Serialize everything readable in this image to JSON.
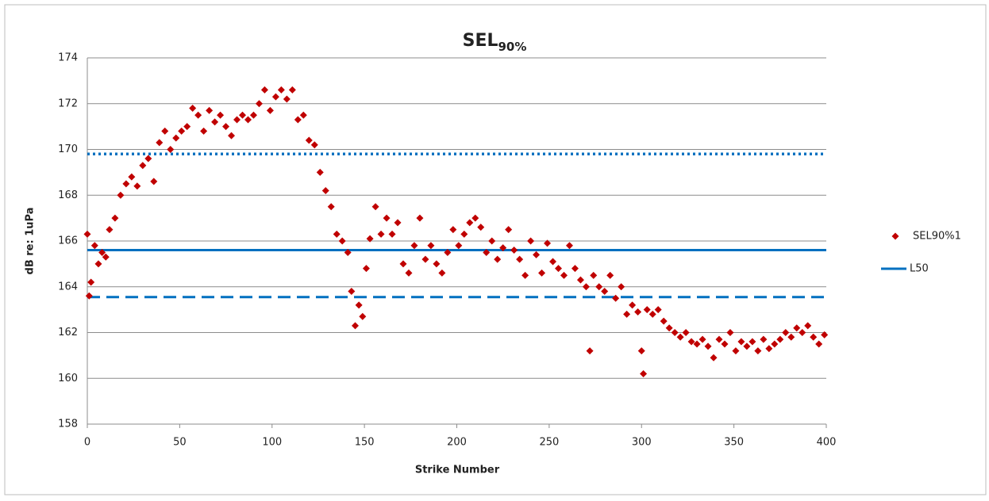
{
  "chart_data": {
    "type": "scatter",
    "title": "SEL",
    "title_subscript": "90%",
    "xlabel": "Strike Number",
    "ylabel": "dB re: 1uPa",
    "xlim": [
      0,
      400
    ],
    "xticks": [
      0,
      50,
      100,
      150,
      200,
      250,
      300,
      350,
      400
    ],
    "ylim": [
      158,
      174
    ],
    "yticks": [
      158,
      160,
      162,
      164,
      166,
      168,
      170,
      172,
      174
    ],
    "grid": true,
    "legend": "right",
    "series": [
      {
        "name": "SEL90%1",
        "color": "#c00000",
        "x": [
          0,
          1,
          2,
          4,
          6,
          8,
          10,
          12,
          15,
          18,
          21,
          24,
          27,
          30,
          33,
          36,
          39,
          42,
          45,
          48,
          51,
          54,
          57,
          60,
          63,
          66,
          69,
          72,
          75,
          78,
          81,
          84,
          87,
          90,
          93,
          96,
          99,
          102,
          105,
          108,
          111,
          114,
          117,
          120,
          123,
          126,
          129,
          132,
          135,
          138,
          141,
          143,
          145,
          147,
          149,
          151,
          153,
          156,
          159,
          162,
          165,
          168,
          171,
          174,
          177,
          180,
          183,
          186,
          189,
          192,
          195,
          198,
          201,
          204,
          207,
          210,
          213,
          216,
          219,
          222,
          225,
          228,
          231,
          234,
          237,
          240,
          243,
          246,
          249,
          252,
          255,
          258,
          261,
          264,
          267,
          270,
          272,
          274,
          277,
          280,
          283,
          286,
          289,
          292,
          295,
          298,
          300,
          301,
          303,
          306,
          309,
          312,
          315,
          318,
          321,
          324,
          327,
          330,
          333,
          336,
          339,
          342,
          345,
          348,
          351,
          354,
          357,
          360,
          363,
          366,
          369,
          372,
          375,
          378,
          381,
          384,
          387,
          390,
          393,
          396,
          399
        ],
        "values": [
          166.3,
          163.6,
          164.2,
          165.8,
          165,
          165.5,
          165.3,
          166.5,
          167,
          168,
          168.5,
          168.8,
          168.4,
          169.3,
          169.6,
          168.6,
          170.3,
          170.8,
          170,
          170.5,
          170.8,
          171,
          171.8,
          171.5,
          170.8,
          171.7,
          171.2,
          171.5,
          171,
          170.6,
          171.3,
          171.5,
          171.3,
          171.5,
          172,
          172.6,
          171.7,
          172.3,
          172.6,
          172.2,
          172.6,
          171.3,
          171.5,
          170.4,
          170.2,
          169,
          168.2,
          167.5,
          166.3,
          166,
          165.5,
          163.8,
          162.3,
          163.2,
          162.7,
          164.8,
          166.1,
          167.5,
          166.3,
          167,
          166.3,
          166.8,
          165,
          164.6,
          165.8,
          167,
          165.2,
          165.8,
          165,
          164.6,
          165.5,
          166.5,
          165.8,
          166.3,
          166.8,
          167,
          166.6,
          165.5,
          166,
          165.2,
          165.7,
          166.5,
          165.6,
          165.2,
          164.5,
          166,
          165.4,
          164.6,
          165.9,
          165.1,
          164.8,
          164.5,
          165.8,
          164.8,
          164.3,
          164,
          161.2,
          164.5,
          164,
          163.8,
          164.5,
          163.5,
          164,
          162.8,
          163.2,
          162.9,
          161.2,
          160.2,
          163,
          162.8,
          163,
          162.5,
          162.2,
          162,
          161.8,
          162,
          161.6,
          161.5,
          161.7,
          161.4,
          160.9,
          161.7,
          161.5,
          162,
          161.2,
          161.6,
          161.4,
          161.6,
          161.2,
          161.7,
          161.3,
          161.5,
          161.7,
          162,
          161.8,
          162.2,
          162,
          162.3,
          161.8,
          161.5,
          161.9
        ]
      }
    ],
    "reference_lines": [
      {
        "name": "L50",
        "value": 165.6,
        "color": "#0070c0",
        "style": "solid"
      },
      {
        "value": 169.8,
        "color": "#0070c0",
        "style": "dotted"
      },
      {
        "value": 163.55,
        "color": "#0070c0",
        "style": "dashed"
      }
    ]
  }
}
